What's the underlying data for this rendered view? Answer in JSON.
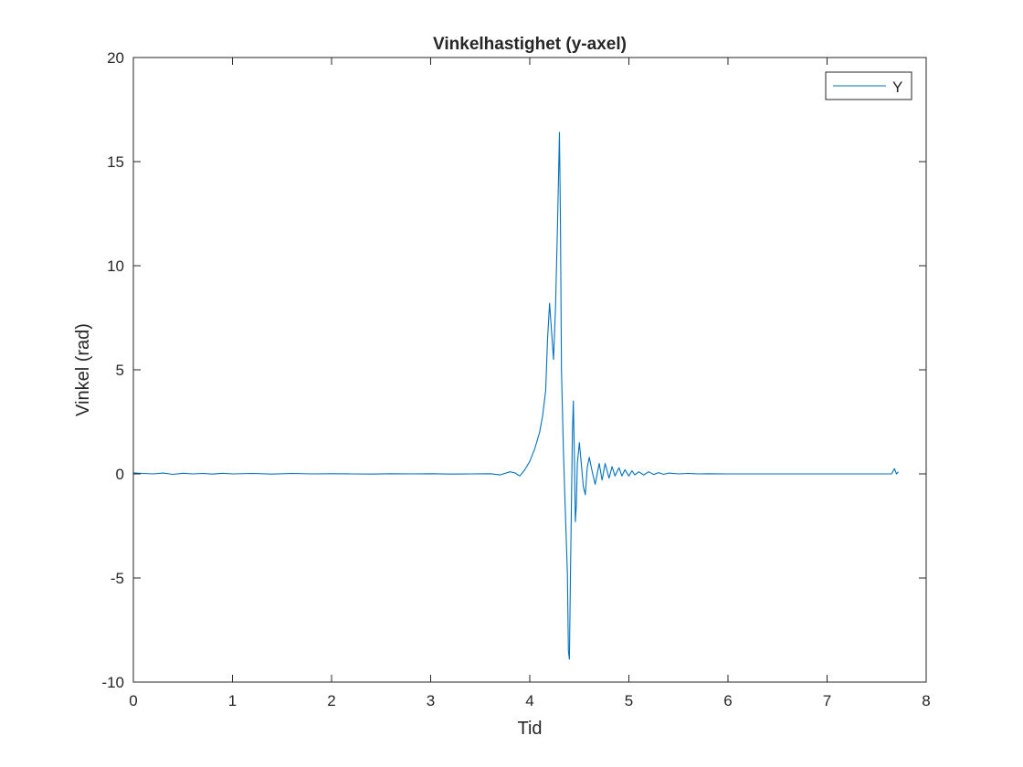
{
  "chart_data": {
    "type": "line",
    "title": "Vinkelhastighet (y-axel)",
    "xlabel": "Tid",
    "ylabel": "Vinkel (rad)",
    "xlim": [
      0,
      8
    ],
    "ylim": [
      -10,
      20
    ],
    "xticks": [
      0,
      1,
      2,
      3,
      4,
      5,
      6,
      7,
      8
    ],
    "yticks": [
      -10,
      -5,
      0,
      5,
      10,
      15,
      20
    ],
    "xtick_labels": [
      "0",
      "1",
      "2",
      "3",
      "4",
      "5",
      "6",
      "7",
      "8"
    ],
    "ytick_labels": [
      "-10",
      "-5",
      "0",
      "5",
      "10",
      "15",
      "20"
    ],
    "grid": false,
    "legend_position": "top-right",
    "series": [
      {
        "name": "Y",
        "color": "#0072BD",
        "x": [
          0,
          0.1,
          0.2,
          0.3,
          0.4,
          0.5,
          0.6,
          0.7,
          0.8,
          0.9,
          1.0,
          1.2,
          1.4,
          1.6,
          1.8,
          2.0,
          2.2,
          2.4,
          2.6,
          2.8,
          3.0,
          3.2,
          3.4,
          3.6,
          3.7,
          3.8,
          3.85,
          3.9,
          3.95,
          4.0,
          4.05,
          4.1,
          4.13,
          4.16,
          4.18,
          4.2,
          4.22,
          4.24,
          4.26,
          4.28,
          4.3,
          4.31,
          4.32,
          4.34,
          4.36,
          4.38,
          4.39,
          4.4,
          4.41,
          4.42,
          4.43,
          4.44,
          4.45,
          4.46,
          4.47,
          4.48,
          4.5,
          4.52,
          4.54,
          4.56,
          4.58,
          4.6,
          4.63,
          4.66,
          4.7,
          4.73,
          4.76,
          4.8,
          4.83,
          4.86,
          4.9,
          4.93,
          4.96,
          5.0,
          5.03,
          5.06,
          5.1,
          5.15,
          5.2,
          5.25,
          5.3,
          5.35,
          5.4,
          5.5,
          5.6,
          5.7,
          5.8,
          6.0,
          6.5,
          7.0,
          7.5,
          7.65,
          7.68,
          7.7,
          7.72
        ],
        "values": [
          0.05,
          0.02,
          0.0,
          0.04,
          -0.02,
          0.03,
          0.0,
          0.02,
          -0.01,
          0.03,
          0.0,
          0.02,
          -0.01,
          0.02,
          0.0,
          0.01,
          0.0,
          -0.01,
          0.01,
          0.0,
          0.01,
          -0.01,
          0.0,
          0.01,
          -0.05,
          0.1,
          0.05,
          -0.1,
          0.2,
          0.6,
          1.2,
          2.0,
          2.8,
          4.0,
          6.5,
          8.2,
          6.8,
          5.5,
          8.0,
          12.0,
          16.4,
          12.0,
          5.0,
          1.0,
          -2.0,
          -4.8,
          -8.5,
          -8.9,
          -5.0,
          -1.5,
          2.0,
          3.5,
          1.0,
          -2.3,
          -1.5,
          0.5,
          1.5,
          0.5,
          -0.6,
          -1.0,
          0.3,
          0.8,
          0.1,
          -0.5,
          0.5,
          -0.3,
          0.5,
          -0.2,
          0.35,
          -0.1,
          0.3,
          -0.1,
          0.2,
          -0.1,
          0.15,
          -0.05,
          0.1,
          -0.05,
          0.1,
          -0.03,
          0.06,
          -0.02,
          0.04,
          0.0,
          0.02,
          0.0,
          0.01,
          0.0,
          0.0,
          0.0,
          0.0,
          0.0,
          0.25,
          0.0,
          0.1
        ]
      }
    ]
  }
}
